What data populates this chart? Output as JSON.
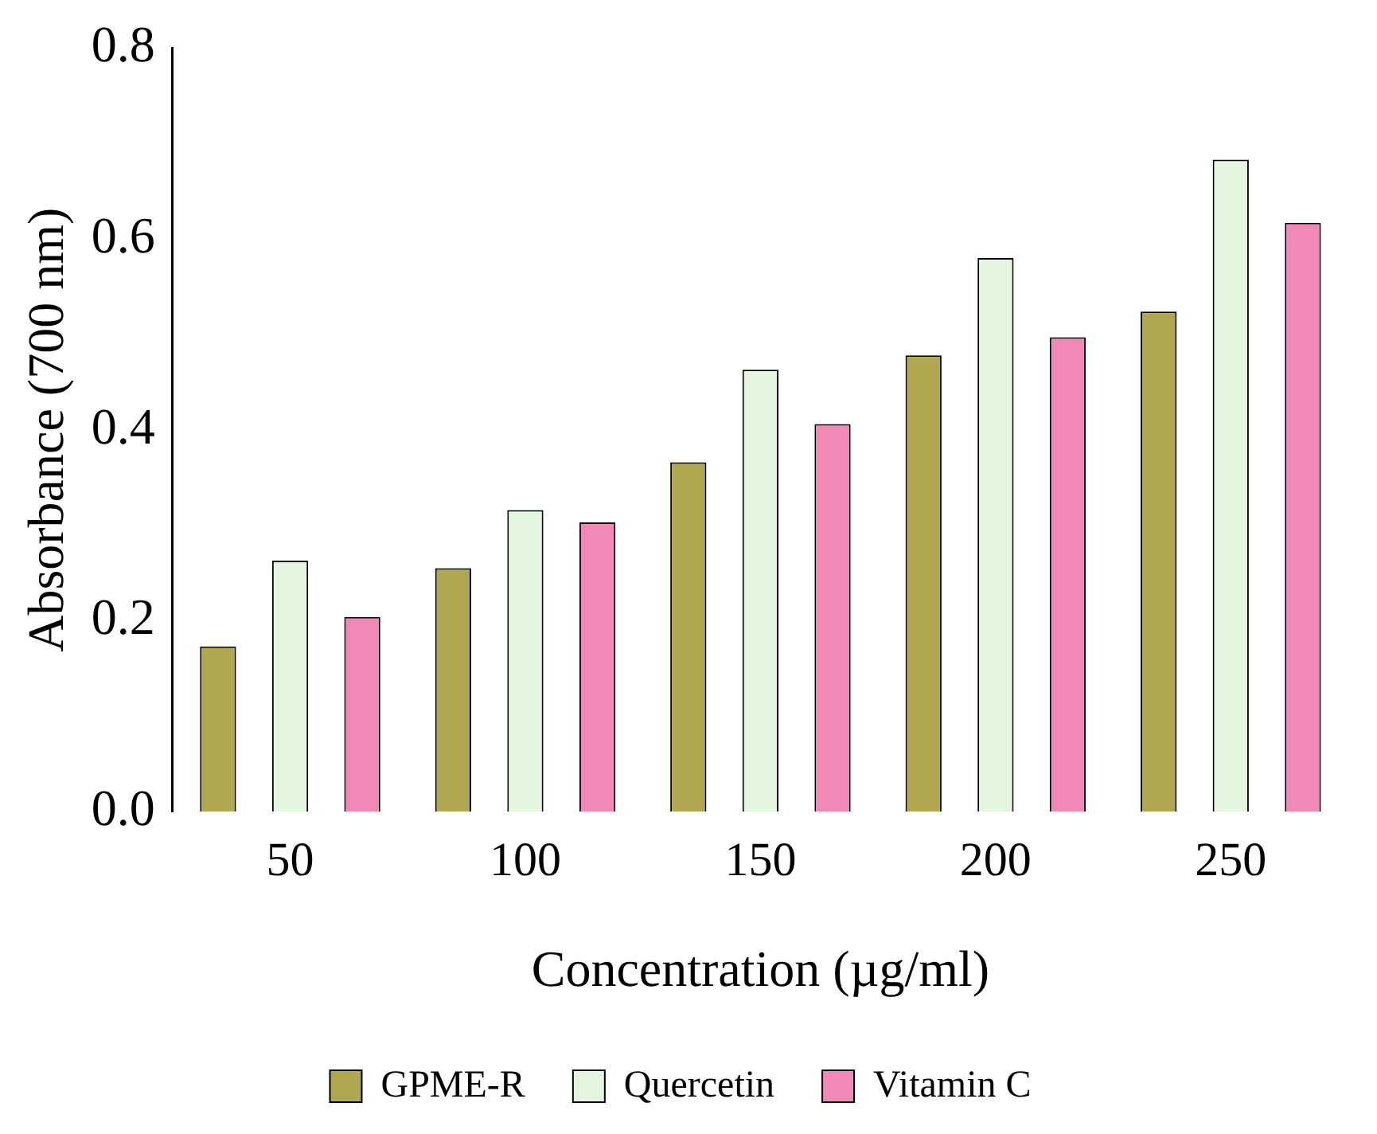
{
  "chart_data": {
    "type": "bar",
    "xlabel": "Concentration (µg/ml)",
    "ylabel": "Absorbance (700 nm)",
    "categories": [
      "50",
      "100",
      "150",
      "200",
      "250"
    ],
    "series": [
      {
        "name": "GPME-R",
        "color": "#b0a850",
        "values": [
          0.173,
          0.255,
          0.366,
          0.478,
          0.524
        ]
      },
      {
        "name": "Quercetin",
        "color": "#e4f5e0",
        "values": [
          0.263,
          0.316,
          0.463,
          0.58,
          0.683
        ]
      },
      {
        "name": "Vitamin C",
        "color": "#f088b8",
        "values": [
          0.204,
          0.303,
          0.406,
          0.497,
          0.617
        ]
      }
    ],
    "ylim": [
      0,
      0.8
    ],
    "yticks": [
      {
        "value": 0,
        "label": "0.0"
      },
      {
        "value": 0.2,
        "label": "0.2"
      },
      {
        "value": 0.4,
        "label": "0.4"
      },
      {
        "value": 0.6,
        "label": "0.6"
      },
      {
        "value": 0.8,
        "label": "0.8"
      }
    ],
    "grid": false,
    "legend": "bottom"
  }
}
